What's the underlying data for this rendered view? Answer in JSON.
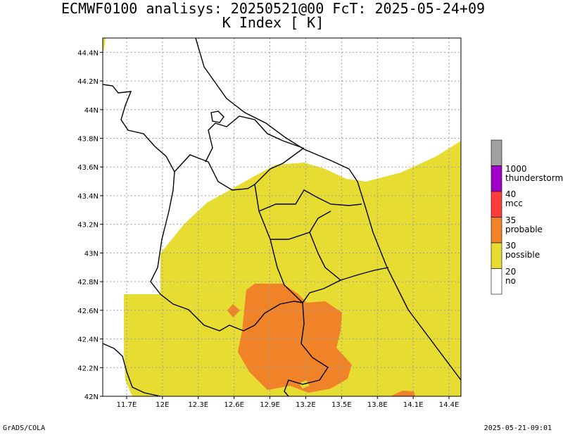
{
  "header": {
    "line1": "ECMWF0100 analisys: 20250521@00 FcT: 2025-05-24+09",
    "line2": "K Index [  K]"
  },
  "axes": {
    "lon_ticks": [
      "11.7E",
      "12E",
      "12.3E",
      "12.6E",
      "12.9E",
      "13.2E",
      "13.5E",
      "13.8E",
      "14.1E",
      "14.4E"
    ],
    "lat_ticks": [
      "42N",
      "42.2N",
      "42.4N",
      "42.6N",
      "42.8N",
      "43N",
      "43.2N",
      "43.4N",
      "43.6N",
      "43.8N",
      "44N",
      "44.2N",
      "44.4N"
    ],
    "lon_range": [
      11.5,
      14.5
    ],
    "lat_range": [
      42.0,
      44.5
    ],
    "grid": true
  },
  "legend": {
    "items": [
      {
        "value": "1000",
        "label": "thunderstorm",
        "color": "#a000c8"
      },
      {
        "value": "40",
        "label": "mcc",
        "color": "#ff3c3c"
      },
      {
        "value": "35",
        "label": "probable",
        "color": "#f08228"
      },
      {
        "value": "30",
        "label": "possible",
        "color": "#e6dc32"
      },
      {
        "value": "20",
        "label": "no",
        "color": "#ffffff"
      }
    ],
    "top_color": "#a0a0a0"
  },
  "colors": {
    "possible": "#e6dc32",
    "probable": "#f08228",
    "grid": "#a0a0a0"
  },
  "footer": {
    "left": "GrADS/COLA",
    "right": "2025-05-21-09:01"
  }
}
